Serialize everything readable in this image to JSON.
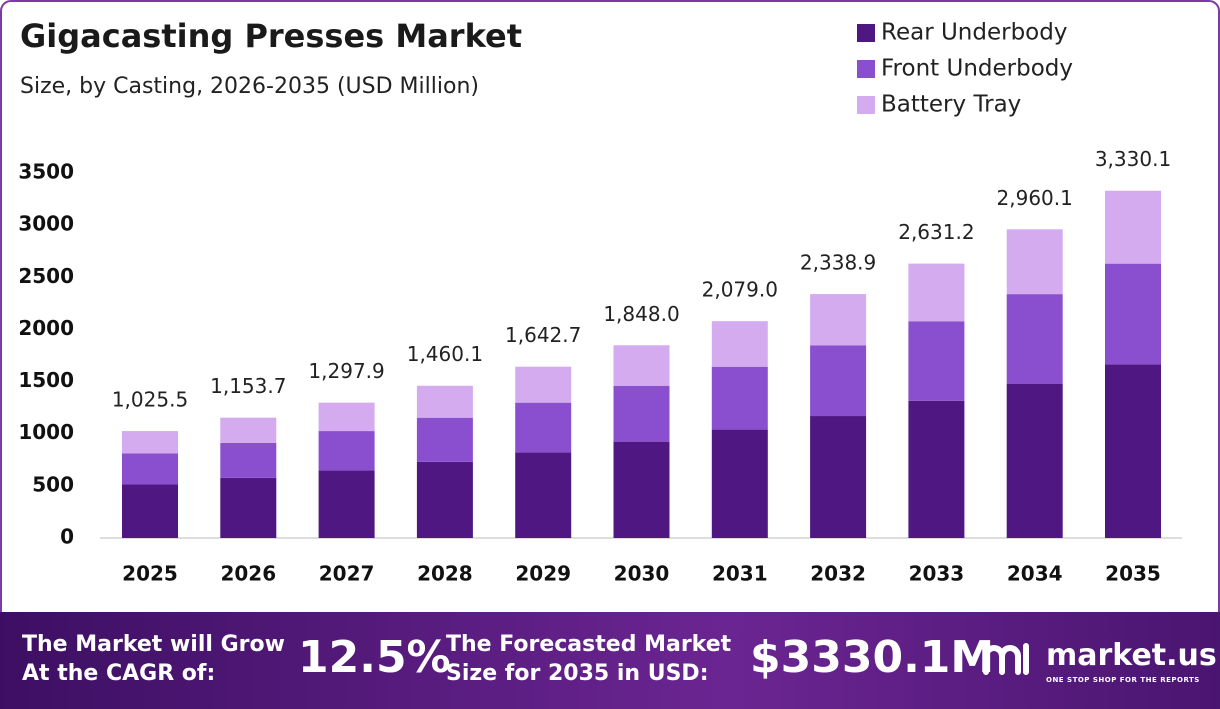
{
  "chart_data": {
    "type": "stacked-bar",
    "title": "Gigacasting Presses Market",
    "subtitle": "Size, by Casting, 2026-2035 (USD Million)",
    "categories": [
      "2025",
      "2026",
      "2027",
      "2028",
      "2029",
      "2030",
      "2031",
      "2032",
      "2033",
      "2034",
      "2035"
    ],
    "series": [
      {
        "name": "Rear Underbody",
        "color": "#4f1781",
        "values": [
          512.8,
          576.9,
          649.0,
          730.1,
          821.4,
          924.0,
          1039.5,
          1169.5,
          1315.6,
          1480.1,
          1665.1
        ]
      },
      {
        "name": "Front Underbody",
        "color": "#8a4fce",
        "values": [
          297.4,
          334.6,
          376.4,
          423.4,
          476.4,
          535.9,
          602.9,
          678.3,
          763.0,
          858.4,
          965.7
        ]
      },
      {
        "name": "Battery Tray",
        "color": "#d4abee",
        "values": [
          215.3,
          242.2,
          272.5,
          306.6,
          344.9,
          388.1,
          436.6,
          491.1,
          552.6,
          621.6,
          699.3
        ]
      }
    ],
    "totals": [
      1025.5,
      1153.7,
      1297.9,
      1460.1,
      1642.7,
      1848.0,
      2079.0,
      2338.9,
      2631.2,
      2960.1,
      3330.1
    ],
    "total_labels": [
      "1,025.5",
      "1,153.7",
      "1,297.9",
      "1,460.1",
      "1,642.7",
      "1,848.0",
      "2,079.0",
      "2,338.9",
      "2,631.2",
      "2,960.1",
      "3,330.1"
    ],
    "ylim": [
      0,
      3500
    ],
    "yticks": [
      0,
      500,
      1000,
      1500,
      2000,
      2500,
      3000,
      3500
    ],
    "grid": false
  },
  "footer": {
    "cagr_text": [
      "The Market will Grow",
      "At the CAGR of:"
    ],
    "cagr": "12.5%",
    "forecast_text": [
      "The Forecasted Market",
      "Size for 2035 in USD:"
    ],
    "forecast": "$3330.1M",
    "brand": "market.us",
    "tagline": "ONE STOP SHOP FOR THE REPORTS"
  }
}
